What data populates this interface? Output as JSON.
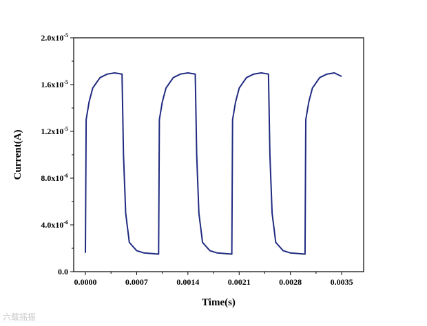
{
  "chart_data": {
    "type": "line",
    "xlabel": "Time(s)",
    "ylabel": "Current(A)",
    "xlim": [
      -0.00016,
      0.0038
    ],
    "ylim": [
      0,
      2e-05
    ],
    "x_ticks": [
      0.0,
      0.0007,
      0.0014,
      0.0021,
      0.0028,
      0.0035
    ],
    "x_tick_labels": [
      "0.0000",
      "0.0007",
      "0.0014",
      "0.0021",
      "0.0028",
      "0.0035"
    ],
    "y_ticks": [
      0.0,
      4e-06,
      8e-06,
      1.2e-05,
      1.6e-05,
      2e-05
    ],
    "y_tick_labels": [
      {
        "mant": "0.0",
        "exp": ""
      },
      {
        "mant": "4.0x10",
        "exp": "-6"
      },
      {
        "mant": "8.0x10",
        "exp": "-6"
      },
      {
        "mant": "1.2x10",
        "exp": "-5"
      },
      {
        "mant": "1.6x10",
        "exp": "-5"
      },
      {
        "mant": "2.0x10",
        "exp": "-5"
      }
    ],
    "grid": false,
    "series": [
      {
        "color": "#1f2a80",
        "points": [
          [
            0.0,
            1.6e-06
          ],
          [
            1e-05,
            1.3e-05
          ],
          [
            5e-05,
            1.45e-05
          ],
          [
            0.0001,
            1.57e-05
          ],
          [
            0.0002,
            1.66e-05
          ],
          [
            0.0003,
            1.69e-05
          ],
          [
            0.0004,
            1.7e-05
          ],
          [
            0.0005,
            1.69e-05
          ],
          [
            0.00052,
            1e-05
          ],
          [
            0.00055,
            5e-06
          ],
          [
            0.0006,
            2.5e-06
          ],
          [
            0.0007,
            1.8e-06
          ],
          [
            0.0008,
            1.6e-06
          ],
          [
            0.001,
            1.5e-06
          ],
          [
            0.00101,
            1.3e-05
          ],
          [
            0.00105,
            1.45e-05
          ],
          [
            0.0011,
            1.57e-05
          ],
          [
            0.0012,
            1.66e-05
          ],
          [
            0.0013,
            1.69e-05
          ],
          [
            0.0014,
            1.7e-05
          ],
          [
            0.0015,
            1.69e-05
          ],
          [
            0.00152,
            1e-05
          ],
          [
            0.00155,
            5e-06
          ],
          [
            0.0016,
            2.5e-06
          ],
          [
            0.0017,
            1.8e-06
          ],
          [
            0.0018,
            1.6e-06
          ],
          [
            0.002,
            1.5e-06
          ],
          [
            0.00201,
            1.3e-05
          ],
          [
            0.00205,
            1.45e-05
          ],
          [
            0.0021,
            1.57e-05
          ],
          [
            0.0022,
            1.66e-05
          ],
          [
            0.0023,
            1.69e-05
          ],
          [
            0.0024,
            1.7e-05
          ],
          [
            0.0025,
            1.69e-05
          ],
          [
            0.00252,
            1e-05
          ],
          [
            0.00255,
            5e-06
          ],
          [
            0.0026,
            2.5e-06
          ],
          [
            0.0027,
            1.8e-06
          ],
          [
            0.0028,
            1.6e-06
          ],
          [
            0.003,
            1.5e-06
          ],
          [
            0.00301,
            1.3e-05
          ],
          [
            0.00305,
            1.45e-05
          ],
          [
            0.0031,
            1.57e-05
          ],
          [
            0.0032,
            1.66e-05
          ],
          [
            0.0033,
            1.69e-05
          ],
          [
            0.0034,
            1.7e-05
          ],
          [
            0.0035,
            1.67e-05
          ]
        ]
      }
    ]
  },
  "watermark": {
    "text": "六载摇摇"
  }
}
